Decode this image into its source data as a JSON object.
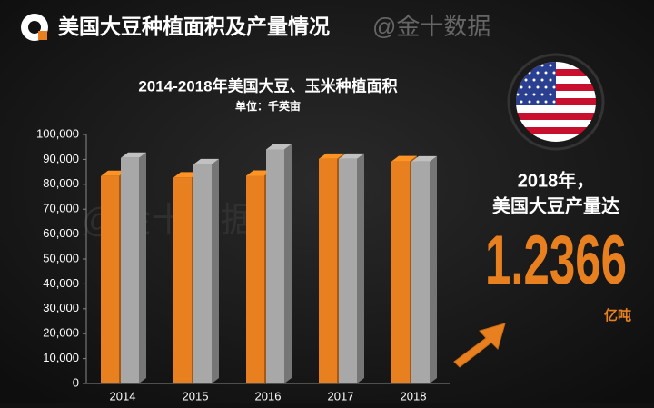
{
  "header": {
    "title": "美国大豆种植面积及产量情况",
    "watermark": "@金十数据"
  },
  "chart_data": {
    "type": "bar3d",
    "title": "2014-2018年美国大豆、玉米种植面积",
    "subtitle": "单位：千英亩",
    "categories": [
      "2014",
      "2015",
      "2016",
      "2017",
      "2018"
    ],
    "series": [
      {
        "color": "#e8801f",
        "values": [
          83300,
          82700,
          83400,
          90200,
          89200
        ]
      },
      {
        "color": "#a8a8a8",
        "values": [
          90600,
          88000,
          94000,
          90200,
          89100
        ]
      }
    ],
    "ylim": [
      0,
      100000
    ],
    "yticks": [
      0,
      {
        "value": 10000,
        "label": "10,000"
      },
      {
        "value": 20000,
        "label": "20,000"
      },
      {
        "value": 30000,
        "label": "30,000"
      },
      {
        "value": 40000,
        "label": "40,000"
      },
      {
        "value": 50000,
        "label": "50,000"
      },
      {
        "value": 60000,
        "label": "60,000"
      },
      {
        "value": 70000,
        "label": "70,000"
      },
      {
        "value": 80000,
        "label": "80,000"
      },
      {
        "value": 90000,
        "label": "90,000"
      },
      {
        "value": 100000,
        "label": "100,000"
      }
    ],
    "grid": false
  },
  "callout": {
    "line1": "2018年，",
    "line2": "美国大豆产量达",
    "figure": "1.2366",
    "unit": "亿吨"
  }
}
